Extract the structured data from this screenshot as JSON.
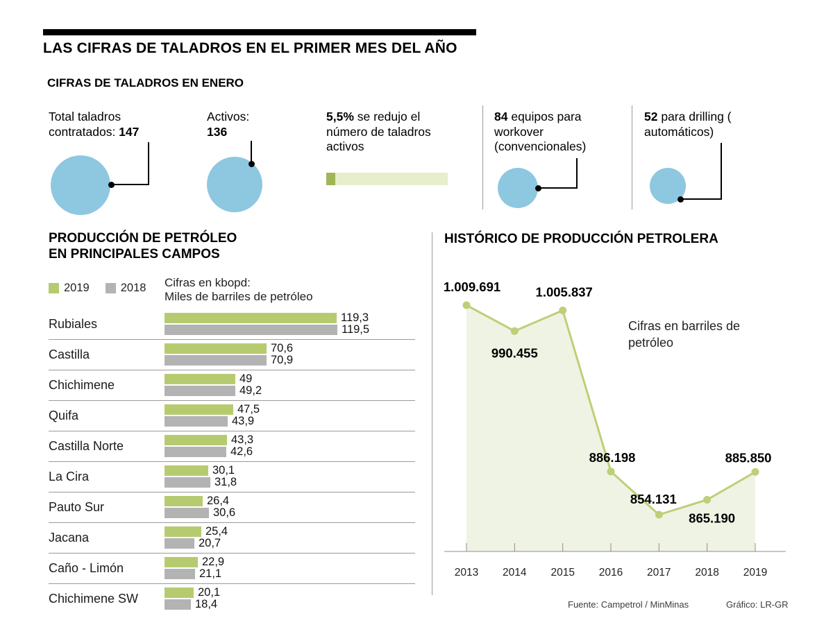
{
  "header": {
    "title": "LAS CIFRAS DE TALADROS EN EL PRIMER MES DEL AÑO",
    "subtitle": "CIFRAS DE TALADROS EN ENERO"
  },
  "stats": {
    "contracted": {
      "line1": "Total taladros",
      "line2_prefix": "contratados: ",
      "value": "147"
    },
    "active": {
      "label": "Activos:",
      "value": "136"
    },
    "reduction": {
      "value": "5,5%",
      "text": " se redujo el número de taladros activos"
    },
    "workover": {
      "value": "84",
      "text": " equipos para workover (convencionales)"
    },
    "drilling": {
      "value": "52",
      "text": " para drilling ( automáticos)"
    }
  },
  "left_chart_header": {
    "line1": "PRODUCCIÓN DE PETRÓLEO",
    "line2": "EN PRINCIPALES CAMPOS"
  },
  "unit_note": {
    "line1": "Cifras en kbopd:",
    "line2": "Miles de barriles de petróleo"
  },
  "right_chart_header": "HISTÓRICO DE PRODUCCIÓN PETROLERA",
  "annotation": "Cifras en barriles de petróleo",
  "footer": {
    "source": "Fuente: Campetrol / MinMinas",
    "credit": "Gráfico: LR-GR"
  },
  "colors": {
    "blue": "#8ec7e0",
    "green_2019": "#b6cb70",
    "gray_2018": "#b3b3b3",
    "bar_track": "#e7eecb",
    "bar_segment": "#a0b556",
    "area_fill": "#eff3e3",
    "line": "#bdcf77"
  },
  "chart_data": [
    {
      "type": "bar",
      "title": "PRODUCCIÓN DE PETRÓLEO EN PRINCIPALES CAMPOS",
      "unit": "kbopd (miles de barriles de petróleo)",
      "categories": [
        "Rubiales",
        "Castilla",
        "Chichimene",
        "Quifa",
        "Castilla Norte",
        "La Cira",
        "Pauto Sur",
        "Jacana",
        "Caño - Limón",
        "Chichimene SW"
      ],
      "series": [
        {
          "name": "2019",
          "values": [
            119.3,
            70.6,
            49,
            47.5,
            43.3,
            30.1,
            26.4,
            25.4,
            22.9,
            20.1
          ],
          "labels": [
            "119,3",
            "70,6",
            "49",
            "47,5",
            "43,3",
            "30,1",
            "26,4",
            "25,4",
            "22,9",
            "20,1"
          ]
        },
        {
          "name": "2018",
          "values": [
            119.5,
            70.9,
            49.2,
            43.9,
            42.6,
            31.8,
            30.6,
            20.7,
            21.1,
            18.4
          ],
          "labels": [
            "119,5",
            "70,9",
            "49,2",
            "43,9",
            "42,6",
            "31,8",
            "30,6",
            "20,7",
            "21,1",
            "18,4"
          ]
        }
      ],
      "legend_position": "top-left",
      "grid": false
    },
    {
      "type": "area",
      "title": "HISTÓRICO DE PRODUCCIÓN PETROLERA",
      "annotation": "Cifras en barriles de petróleo",
      "x": [
        2013,
        2014,
        2015,
        2016,
        2017,
        2018,
        2019
      ],
      "values": [
        1009691,
        990455,
        1005837,
        886198,
        854131,
        865190,
        885850
      ],
      "labels": [
        "1.009.691",
        "990.455",
        "1.005.837",
        "886.198",
        "854.131",
        "865.190",
        "885.850"
      ],
      "line_color": "#bdcf77",
      "fill_color": "#eff3e3",
      "grid": false
    }
  ]
}
